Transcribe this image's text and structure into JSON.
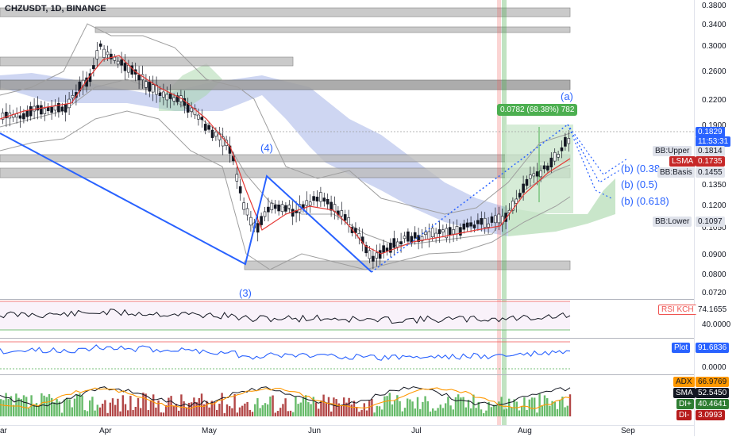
{
  "header": {
    "symbol": "CHZUSDT, 1D, BINANCE"
  },
  "price_scale": {
    "ticks": [
      "0.3800",
      "0.3400",
      "0.3000",
      "0.2600",
      "0.2200",
      "0.1900",
      "0.1650",
      "0.1350",
      "0.1200",
      "0.1050",
      "0.0900",
      "0.0800",
      "0.0720"
    ],
    "last_price": "0.1829",
    "countdown": "11:53:31",
    "bb_upper_label": "BB:Upper",
    "bb_upper_value": "0.1814",
    "lsma_label": "LSMA",
    "lsma_value": "0.1735",
    "bb_basis_label": "BB:Basis",
    "bb_basis_value": "0.1455",
    "bb_lower_label": "BB:Lower",
    "bb_lower_value": "0.1097"
  },
  "measure_label": "0.0782 (68.38%) 782",
  "waves": {
    "w3": "(3)",
    "w4": "(4)",
    "wa": "(a)"
  },
  "fib_targets": [
    "(b) (0.38",
    "(b) (0.5)",
    "(b) (0.618)"
  ],
  "rsi": {
    "label": "RSI KCH",
    "value": "74.1655",
    "tick": "40.0000"
  },
  "plot": {
    "label": "Plot",
    "value": "91.6836",
    "tick": "0.0000"
  },
  "dmi": {
    "adx_label": "ADX",
    "adx_value": "66.9769",
    "sma_label": "SMA",
    "sma_value": "52.5450",
    "di_plus_label": "DI+",
    "di_plus_value": "40.4641",
    "di_minus_label": "DI-",
    "di_minus_value": "3.0993"
  },
  "time_axis": [
    "ar",
    "Apr",
    "May",
    "Jun",
    "Jul",
    "Aug",
    "Sep"
  ],
  "colors": {
    "up": "#26a69a",
    "down": "#ef5350",
    "blue": "#2962ff",
    "cloud": "#a5b4e8",
    "green_box": "#c8e6c9"
  }
}
